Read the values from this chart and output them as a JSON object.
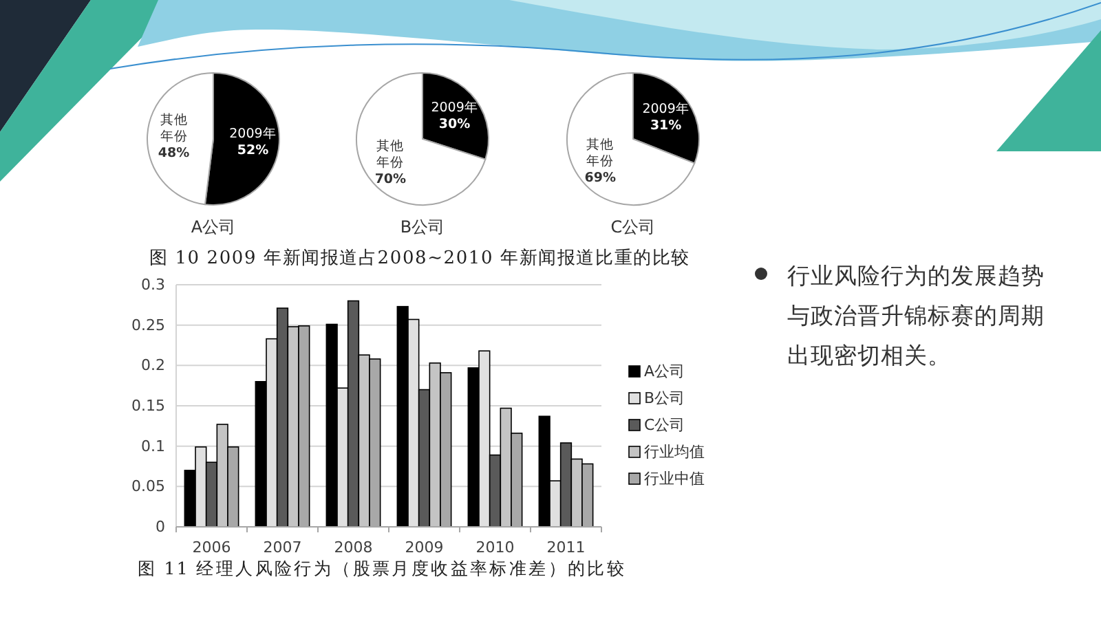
{
  "chart_data": [
    {
      "type": "pie",
      "title": "A公司",
      "categories": [
        "2009年",
        "其他年份"
      ],
      "values": [
        52,
        48
      ],
      "colors": [
        "#000000",
        "#ffffff"
      ],
      "value_labels": [
        "52%",
        "48%"
      ],
      "annotations": [
        "图 10  2009 年新闻报道占2008~2010 年新闻报道比重的比较"
      ]
    },
    {
      "type": "pie",
      "title": "B公司",
      "categories": [
        "2009年",
        "其他年份"
      ],
      "values": [
        30,
        70
      ],
      "colors": [
        "#000000",
        "#ffffff"
      ],
      "value_labels": [
        "30%",
        "70%"
      ]
    },
    {
      "type": "pie",
      "title": "C公司",
      "categories": [
        "2009年",
        "其他年份"
      ],
      "values": [
        31,
        69
      ],
      "colors": [
        "#000000",
        "#ffffff"
      ],
      "value_labels": [
        "31%",
        "69%"
      ]
    },
    {
      "type": "bar",
      "categories": [
        "2006",
        "2007",
        "2008",
        "2009",
        "2010",
        "2011"
      ],
      "series": [
        {
          "name": "A公司",
          "color": "#000000",
          "values": [
            0.07,
            0.18,
            0.251,
            0.273,
            0.197,
            0.137
          ]
        },
        {
          "name": "B公司",
          "color": "#e0e0e0",
          "values": [
            0.099,
            0.233,
            0.172,
            0.257,
            0.218,
            0.057
          ]
        },
        {
          "name": "C公司",
          "color": "#5a5a5a",
          "values": [
            0.08,
            0.271,
            0.28,
            0.17,
            0.089,
            0.104
          ]
        },
        {
          "name": "行业均值",
          "color": "#c4c4c4",
          "values": [
            0.127,
            0.248,
            0.213,
            0.203,
            0.147,
            0.084
          ]
        },
        {
          "name": "行业中值",
          "color": "#a8a8a8",
          "values": [
            0.099,
            0.249,
            0.208,
            0.191,
            0.116,
            0.078
          ]
        }
      ],
      "ylim": [
        0,
        0.3
      ],
      "yticks": [
        0,
        0.05,
        0.1,
        0.15,
        0.2,
        0.25,
        0.3
      ],
      "grid": "y",
      "legend": "right",
      "annotations": [
        "图 11  经理人风险行为（股票月度收益率标准差）的比较"
      ]
    },
    {
      "type": "other",
      "annotations": [
        "行业风险行为的发展趋势与政治晋升锦标赛的周期出现密切相关。"
      ]
    }
  ]
}
